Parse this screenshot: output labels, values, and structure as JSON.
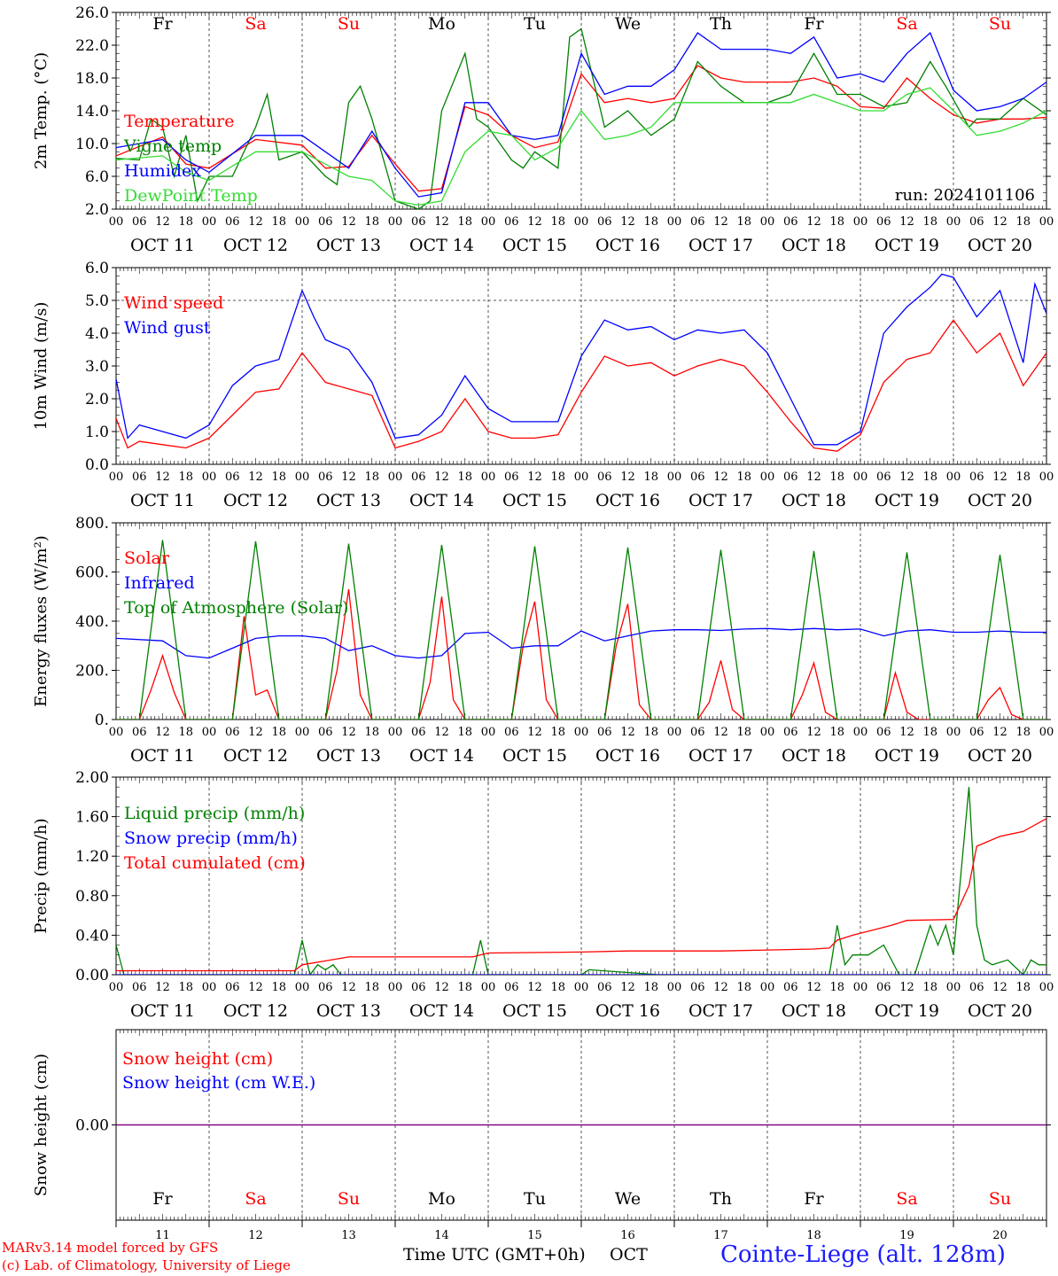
{
  "run_label": "run: 2024101106",
  "days": [
    "Fr",
    "Sa",
    "Su",
    "Mo",
    "Tu",
    "We",
    "Th",
    "Fr",
    "Sa",
    "Su"
  ],
  "weekend_days": [
    "Sa",
    "Su"
  ],
  "date_labels": [
    "OCT 11",
    "OCT 12",
    "OCT 13",
    "OCT 14",
    "OCT 15",
    "OCT 16",
    "OCT 17",
    "OCT 18",
    "OCT 19",
    "OCT 20"
  ],
  "hour_ticks": [
    "00",
    "06",
    "12",
    "18"
  ],
  "bottom_day_numbers": [
    "11",
    "12",
    "13",
    "14",
    "15",
    "16",
    "17",
    "18",
    "19",
    "20"
  ],
  "footer": {
    "model": "MARv3.14 model forced by GFS",
    "copyright": "(c) Lab. of Climatology, University of Liege",
    "xlabel": "Time UTC (GMT+0h)",
    "month": "OCT",
    "station": "Cointe-Liege (alt. 128m)"
  },
  "colors": {
    "red": "#ff0000",
    "green": "#008000",
    "blue": "#0000ff",
    "lightgreen": "#33dd33",
    "purple": "#7f007f"
  },
  "chart_data": [
    {
      "type": "line",
      "ylabel": "2m Temp. (°C)",
      "ylim": [
        2,
        26
      ],
      "yticks": [
        "2.0",
        "6.0",
        "10.0",
        "14.0",
        "18.0",
        "22.0",
        "26.0"
      ],
      "x_units": "hours since 2024-10-11 00 UTC",
      "series": [
        {
          "name": "Temperature",
          "color": "red",
          "x": [
            0,
            12,
            18,
            24,
            36,
            48,
            54,
            60,
            66,
            72,
            78,
            84,
            90,
            96,
            102,
            108,
            114,
            120,
            126,
            132,
            138,
            144,
            150,
            156,
            162,
            168,
            174,
            180,
            186,
            192,
            198,
            204,
            210,
            216,
            222,
            228,
            234,
            240
          ],
          "y": [
            8.5,
            10.8,
            7.5,
            7,
            10.5,
            9.8,
            7,
            7.2,
            11,
            7.5,
            4.2,
            4.5,
            14.5,
            13.5,
            11,
            9.5,
            10.2,
            18.5,
            15,
            15.5,
            15,
            15.5,
            19.5,
            18,
            17.5,
            17.5,
            17.5,
            18,
            17,
            14.5,
            14.3,
            18,
            15.5,
            13.5,
            12.5,
            13,
            13,
            13.2
          ]
        },
        {
          "name": "Vigne temp",
          "color": "green",
          "x": [
            0,
            6,
            9,
            12,
            15,
            18,
            21,
            24,
            30,
            36,
            39,
            42,
            48,
            54,
            57,
            60,
            63,
            66,
            72,
            78,
            81,
            84,
            90,
            93,
            96,
            102,
            105,
            108,
            114,
            117,
            120,
            123,
            126,
            132,
            138,
            144,
            150,
            156,
            162,
            168,
            174,
            180,
            186,
            192,
            198,
            204,
            210,
            214,
            220,
            222,
            228,
            234,
            240
          ],
          "y": [
            8.2,
            8,
            13,
            12,
            6,
            11,
            3,
            6,
            6,
            12,
            16,
            8,
            9,
            6,
            5,
            15,
            17,
            13,
            3,
            2,
            3,
            14,
            21,
            13,
            12,
            8,
            7,
            9,
            7,
            23,
            24,
            18,
            12,
            14,
            11,
            13,
            20,
            17,
            15,
            15,
            16,
            21,
            16,
            16,
            14.5,
            15,
            20,
            17,
            12,
            13,
            13,
            15.5,
            13.5
          ]
        },
        {
          "name": "Humidex",
          "color": "blue",
          "x": [
            0,
            12,
            18,
            24,
            36,
            48,
            60,
            66,
            72,
            78,
            84,
            90,
            96,
            102,
            108,
            114,
            120,
            126,
            132,
            138,
            144,
            150,
            156,
            162,
            168,
            174,
            180,
            186,
            192,
            198,
            204,
            210,
            216,
            222,
            228,
            234,
            240
          ],
          "y": [
            9.5,
            10.5,
            8,
            6.5,
            11,
            11,
            7,
            11.5,
            7,
            3.5,
            4,
            15,
            15,
            11,
            10.5,
            11,
            21,
            16,
            17,
            17,
            19,
            23.5,
            21.5,
            21.5,
            21.5,
            21,
            23,
            18,
            18.5,
            17.5,
            21,
            23.5,
            16.5,
            14,
            14.5,
            15.5,
            17.5
          ]
        },
        {
          "name": "DewPoint Temp",
          "color": "lightgreen",
          "x": [
            0,
            12,
            18,
            24,
            36,
            48,
            60,
            66,
            72,
            78,
            84,
            90,
            96,
            102,
            108,
            114,
            120,
            126,
            132,
            138,
            144,
            150,
            156,
            162,
            168,
            174,
            180,
            186,
            192,
            198,
            204,
            210,
            216,
            222,
            228,
            234,
            240
          ],
          "y": [
            8,
            8.5,
            6.5,
            5.5,
            9,
            9,
            6,
            5.5,
            3,
            2.5,
            3,
            9,
            11.5,
            11,
            8,
            9.5,
            14,
            10.5,
            11,
            12,
            15,
            15,
            15,
            15,
            15,
            15,
            16,
            15,
            14,
            14,
            16,
            16.8,
            14,
            11,
            11.5,
            12.5,
            14
          ]
        }
      ]
    },
    {
      "type": "line",
      "ylabel": "10m Wind (m/s)",
      "ylim": [
        0,
        6
      ],
      "yticks": [
        "0.0",
        "1.0",
        "2.0",
        "3.0",
        "4.0",
        "5.0",
        "6.0"
      ],
      "reference_line": 5,
      "series": [
        {
          "name": "Wind speed",
          "color": "red",
          "x": [
            0,
            3,
            6,
            12,
            18,
            24,
            30,
            36,
            42,
            48,
            54,
            60,
            66,
            72,
            78,
            84,
            90,
            96,
            102,
            108,
            114,
            120,
            126,
            132,
            138,
            144,
            150,
            156,
            162,
            168,
            174,
            180,
            186,
            192,
            198,
            204,
            210,
            216,
            222,
            228,
            234,
            240
          ],
          "y": [
            1.4,
            0.5,
            0.7,
            0.6,
            0.5,
            0.8,
            1.5,
            2.2,
            2.3,
            3.4,
            2.5,
            2.3,
            2.1,
            0.5,
            0.7,
            1.0,
            2.0,
            1.0,
            0.8,
            0.8,
            0.9,
            2.2,
            3.3,
            3.0,
            3.1,
            2.7,
            3.0,
            3.2,
            3.0,
            2.2,
            1.3,
            0.5,
            0.4,
            0.9,
            2.5,
            3.2,
            3.4,
            4.4,
            3.4,
            4.0,
            2.4,
            3.4
          ]
        },
        {
          "name": "Wind gust",
          "color": "blue",
          "x": [
            0,
            3,
            6,
            12,
            18,
            24,
            30,
            36,
            42,
            48,
            51,
            54,
            60,
            66,
            72,
            78,
            84,
            90,
            96,
            102,
            108,
            114,
            120,
            126,
            132,
            138,
            144,
            150,
            156,
            162,
            168,
            174,
            180,
            186,
            192,
            198,
            204,
            210,
            213,
            216,
            222,
            228,
            234,
            237,
            240
          ],
          "y": [
            2.6,
            0.8,
            1.2,
            1.0,
            0.8,
            1.2,
            2.4,
            3.0,
            3.2,
            5.3,
            4.5,
            3.8,
            3.5,
            2.5,
            0.8,
            0.9,
            1.5,
            2.7,
            1.7,
            1.3,
            1.3,
            1.3,
            3.3,
            4.4,
            4.1,
            4.2,
            3.8,
            4.1,
            4.0,
            4.1,
            3.4,
            2.0,
            0.6,
            0.6,
            1.0,
            4.0,
            4.8,
            5.4,
            5.8,
            5.7,
            4.5,
            5.3,
            3.1,
            5.5,
            4.6
          ]
        }
      ]
    },
    {
      "type": "line",
      "ylabel": "Energy fluxes (W/m²)",
      "ylim": [
        0,
        800
      ],
      "yticks": [
        "0.",
        "200.",
        "400.",
        "600.",
        "800."
      ],
      "series": [
        {
          "name": "Solar",
          "color": "red",
          "x": [
            0,
            6,
            9,
            12,
            15,
            18,
            24,
            30,
            33,
            36,
            39,
            42,
            48,
            54,
            57,
            60,
            63,
            66,
            72,
            78,
            81,
            84,
            87,
            90,
            96,
            102,
            105,
            108,
            111,
            114,
            120,
            126,
            129,
            132,
            135,
            138,
            144,
            150,
            153,
            156,
            159,
            162,
            168,
            174,
            177,
            180,
            183,
            186,
            192,
            198,
            201,
            204,
            207,
            210,
            216,
            222,
            225,
            228,
            231,
            234,
            240
          ],
          "y": [
            0,
            0,
            120,
            260,
            110,
            0,
            0,
            0,
            420,
            100,
            120,
            0,
            0,
            0,
            200,
            530,
            100,
            0,
            0,
            0,
            150,
            500,
            80,
            0,
            0,
            0,
            300,
            480,
            80,
            0,
            0,
            0,
            300,
            470,
            60,
            0,
            0,
            0,
            70,
            240,
            40,
            0,
            0,
            0,
            100,
            230,
            30,
            0,
            0,
            0,
            190,
            30,
            0,
            0,
            0,
            0,
            80,
            130,
            20,
            0,
            0
          ]
        },
        {
          "name": "Infrared",
          "color": "blue",
          "x": [
            0,
            12,
            18,
            24,
            30,
            36,
            42,
            48,
            54,
            60,
            66,
            72,
            78,
            84,
            90,
            96,
            102,
            108,
            114,
            120,
            126,
            132,
            138,
            144,
            150,
            156,
            162,
            168,
            174,
            180,
            186,
            192,
            198,
            204,
            210,
            216,
            222,
            228,
            234,
            240
          ],
          "y": [
            330,
            320,
            260,
            250,
            290,
            330,
            340,
            340,
            330,
            280,
            300,
            260,
            250,
            260,
            350,
            355,
            290,
            300,
            300,
            360,
            320,
            340,
            360,
            365,
            365,
            362,
            368,
            370,
            365,
            370,
            365,
            368,
            340,
            360,
            365,
            355,
            355,
            360,
            355,
            355
          ]
        },
        {
          "name": "Top of Atmosphere (Solar)",
          "color": "green",
          "x": [
            0,
            6,
            12,
            18,
            24,
            30,
            36,
            42,
            48,
            54,
            60,
            66,
            72,
            78,
            84,
            90,
            96,
            102,
            108,
            114,
            120,
            126,
            132,
            138,
            144,
            150,
            156,
            162,
            168,
            174,
            180,
            186,
            192,
            198,
            204,
            210,
            216,
            222,
            228,
            234,
            240
          ],
          "y": [
            0,
            0,
            730,
            0,
            0,
            0,
            725,
            0,
            0,
            0,
            715,
            0,
            0,
            0,
            710,
            0,
            0,
            0,
            705,
            0,
            0,
            0,
            700,
            0,
            0,
            0,
            690,
            0,
            0,
            0,
            685,
            0,
            0,
            0,
            680,
            0,
            0,
            0,
            670,
            0,
            0
          ]
        }
      ]
    },
    {
      "type": "line",
      "ylabel": "Precip (mm/h)",
      "ylim": [
        0,
        2
      ],
      "yticks": [
        "0.00",
        "0.40",
        "0.80",
        "1.20",
        "1.60",
        "2.00"
      ],
      "series": [
        {
          "name": "Liquid precip (mm/h)",
          "color": "green",
          "x": [
            0,
            2,
            4,
            46,
            48,
            50,
            52,
            54,
            56,
            58,
            92,
            94,
            96,
            98,
            100,
            120,
            122,
            140,
            184,
            186,
            188,
            190,
            194,
            198,
            202,
            206,
            210,
            212,
            214,
            216,
            220,
            222,
            224,
            226,
            230,
            234,
            236,
            238,
            240
          ],
          "y": [
            0.3,
            0,
            0,
            0,
            0.35,
            0,
            0.1,
            0.05,
            0.1,
            0,
            0,
            0.35,
            0,
            0,
            0,
            0,
            0.05,
            0,
            0,
            0.5,
            0.1,
            0.2,
            0.2,
            0.3,
            0,
            0,
            0.5,
            0.3,
            0.5,
            0.2,
            1.9,
            0.5,
            0.15,
            0.1,
            0.15,
            0,
            0.15,
            0.1,
            0.1
          ]
        },
        {
          "name": "Snow precip (mm/h)",
          "color": "blue",
          "x": [
            0,
            240
          ],
          "y": [
            0,
            0
          ]
        },
        {
          "name": "Total cumulated (cm)",
          "color": "red",
          "x": [
            0,
            46,
            48,
            54,
            60,
            72,
            84,
            92,
            96,
            120,
            132,
            144,
            156,
            168,
            180,
            184,
            186,
            190,
            196,
            200,
            204,
            216,
            220,
            222,
            228,
            234,
            240
          ],
          "y": [
            0.04,
            0.04,
            0.1,
            0.14,
            0.18,
            0.18,
            0.18,
            0.18,
            0.22,
            0.23,
            0.24,
            0.24,
            0.24,
            0.25,
            0.26,
            0.27,
            0.35,
            0.4,
            0.46,
            0.5,
            0.55,
            0.56,
            0.9,
            1.3,
            1.4,
            1.45,
            1.58
          ]
        }
      ]
    },
    {
      "type": "line",
      "ylabel": "Snow height (cm)",
      "yticks": [
        "0.00"
      ],
      "series": [
        {
          "name": "Snow height (cm)",
          "color": "red",
          "x": [
            0,
            240
          ],
          "y": [
            0,
            0
          ]
        },
        {
          "name": "Snow height (cm W.E.)",
          "color": "blue",
          "x": [
            0,
            240
          ],
          "y": [
            0,
            0
          ]
        }
      ]
    }
  ]
}
